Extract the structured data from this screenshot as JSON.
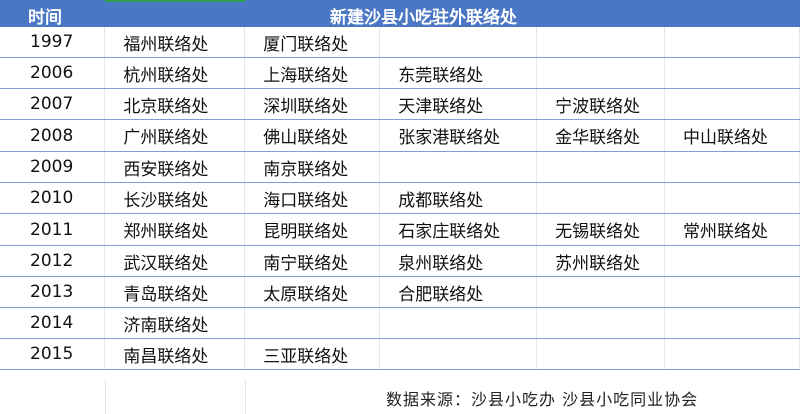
{
  "header": {
    "time_label": "时间",
    "main_label": "新建沙县小吃驻外联络处",
    "color": "#4a76c4"
  },
  "rows": [
    {
      "year": "1997",
      "offices": [
        "福州联络处",
        "厦门联络处",
        "",
        "",
        ""
      ]
    },
    {
      "year": "2006",
      "offices": [
        "杭州联络处",
        "上海联络处",
        "东莞联络处",
        "",
        ""
      ]
    },
    {
      "year": "2007",
      "offices": [
        "北京联络处",
        "深圳联络处",
        "天津联络处",
        "宁波联络处",
        ""
      ]
    },
    {
      "year": "2008",
      "offices": [
        "广州联络处",
        "佛山联络处",
        "张家港联络处",
        "金华联络处",
        "中山联络处"
      ]
    },
    {
      "year": "2009",
      "offices": [
        "西安联络处",
        "南京联络处",
        "",
        "",
        ""
      ]
    },
    {
      "year": "2010",
      "offices": [
        "长沙联络处",
        "海口联络处",
        "成都联络处",
        "",
        ""
      ]
    },
    {
      "year": "2011",
      "offices": [
        "郑州联络处",
        "昆明联络处",
        "石家庄联络处",
        "无锡联络处",
        "常州联络处"
      ]
    },
    {
      "year": "2012",
      "offices": [
        "武汉联络处",
        "南宁联络处",
        "泉州联络处",
        "苏州联络处",
        ""
      ]
    },
    {
      "year": "2013",
      "offices": [
        "青岛联络处",
        "太原联络处",
        "合肥联络处",
        "",
        ""
      ]
    },
    {
      "year": "2014",
      "offices": [
        "济南联络处",
        "",
        "",
        "",
        ""
      ]
    },
    {
      "year": "2015",
      "offices": [
        "南昌联络处",
        "三亚联络处",
        "",
        "",
        ""
      ]
    }
  ],
  "footer": {
    "source": "数据来源：沙县小吃办 沙县小吃同业协会"
  }
}
